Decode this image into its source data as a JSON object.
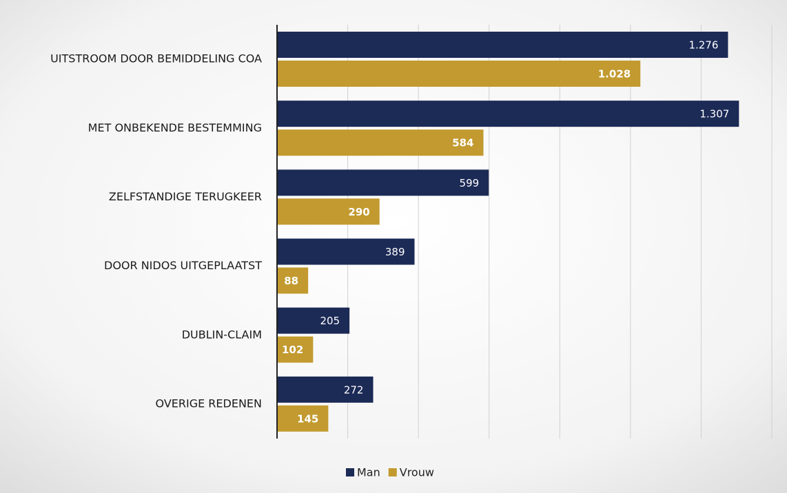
{
  "chart_data": {
    "type": "barh",
    "categories": [
      "UITSTROOM DOOR BEMIDDELING COA",
      "MET ONBEKENDE BESTEMMING",
      "ZELFSTANDIGE TERUGKEER",
      "DOOR NIDOS UITGEPLAATST",
      "DUBLIN-CLAIM",
      "OVERIGE REDENEN"
    ],
    "series": [
      {
        "name": "Man",
        "color": "#1c2a56",
        "values": [
          1276,
          1307,
          599,
          389,
          205,
          272
        ],
        "value_labels": [
          "1.276",
          "1.307",
          "599",
          "389",
          "205",
          "272"
        ]
      },
      {
        "name": "Vrouw",
        "color": "#c29a2f",
        "values": [
          1028,
          584,
          290,
          88,
          102,
          145
        ],
        "value_labels": [
          "1.028",
          "584",
          "290",
          "88",
          "102",
          "145"
        ]
      }
    ],
    "xlim": [
      0,
      1400
    ],
    "xticks": [
      0,
      200,
      400,
      600,
      800,
      1000,
      1200,
      1400
    ],
    "grid": true,
    "legend": "bottom"
  }
}
